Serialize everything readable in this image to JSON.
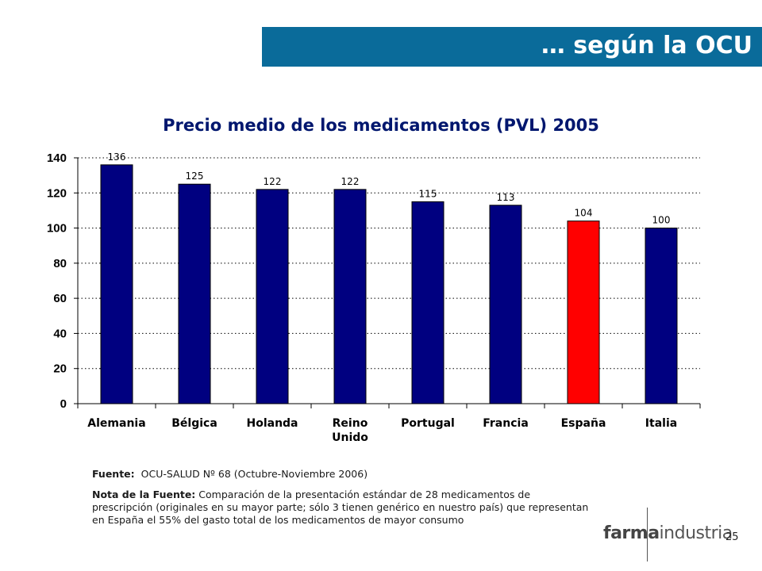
{
  "header": {
    "title": "… según la OCU"
  },
  "chart_data": {
    "type": "bar",
    "title": "Precio medio de los medicamentos (PVL) 2005",
    "categories": [
      "Alemania",
      "Bélgica",
      "Holanda",
      "Reino Unido",
      "Portugal",
      "Francia",
      "España",
      "Italia"
    ],
    "category_lines": [
      [
        "Alemania"
      ],
      [
        "Bélgica"
      ],
      [
        "Holanda"
      ],
      [
        "Reino",
        "Unido"
      ],
      [
        "Portugal"
      ],
      [
        "Francia"
      ],
      [
        "España"
      ],
      [
        "Italia"
      ]
    ],
    "values": [
      136,
      125,
      122,
      122,
      115,
      113,
      104,
      100
    ],
    "data_labels": [
      "136",
      "125",
      "122",
      "122",
      "115",
      "113",
      "104",
      "100"
    ],
    "highlight_category": "España",
    "colors": {
      "default": "#000080",
      "highlight": "#ff0000"
    },
    "ylim": [
      0,
      140
    ],
    "yticks": [
      0,
      20,
      40,
      60,
      80,
      100,
      120,
      140
    ],
    "ytick_labels": [
      "0",
      "20",
      "40",
      "60",
      "80",
      "100",
      "120",
      "140"
    ],
    "xlabel": "",
    "ylabel": "",
    "grid": true
  },
  "source": {
    "label": "Fuente:",
    "text": "OCU-SALUD Nº 68 (Octubre-Noviembre 2006)",
    "note_label": "Nota de la Fuente:",
    "note_text": "Comparación de la presentación estándar de 28 medicamentos de prescripción (originales en su mayor parte; sólo 3 tienen genérico en nuestro país) que representan en España el 55% del gasto total de los medicamentos de mayor consumo"
  },
  "footer": {
    "logo_bold": "farma",
    "logo_light": "industria",
    "page_number": "25"
  }
}
